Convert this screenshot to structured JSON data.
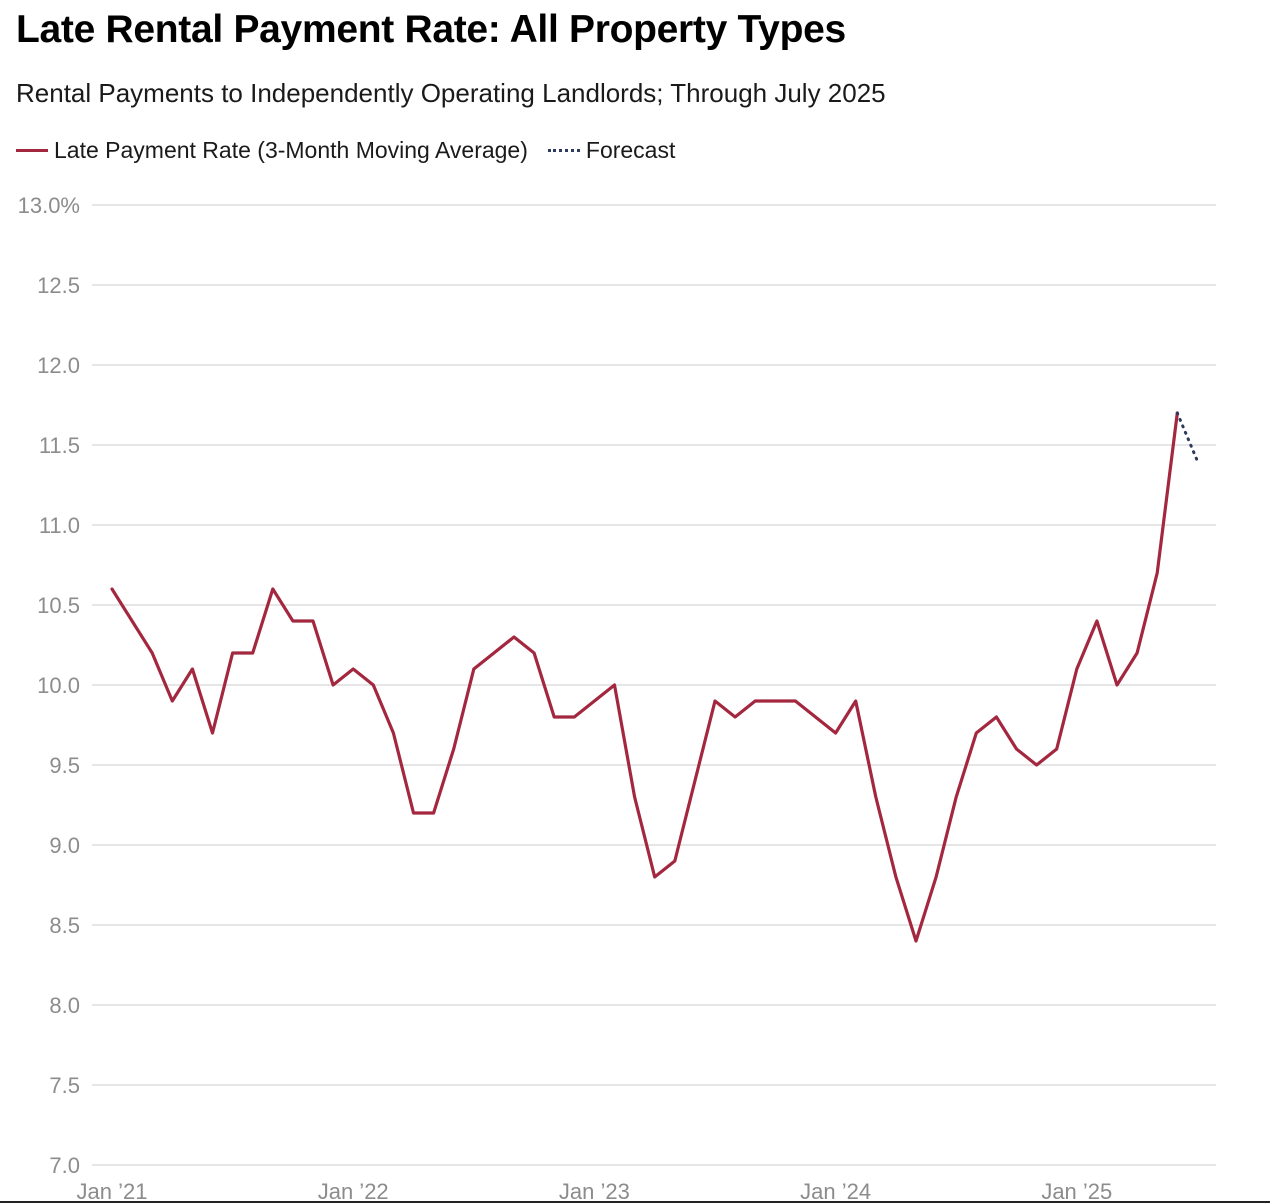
{
  "title": "Late Rental Payment Rate: All Property Types",
  "subtitle": "Rental Payments to Independently Operating Landlords; Through July 2025",
  "chart_data": {
    "type": "line",
    "title": "Late Rental Payment Rate: All Property Types",
    "subtitle": "Rental Payments to Independently Operating Landlords; Through July 2025",
    "ylim": [
      7.0,
      13.0
    ],
    "grid": true,
    "legend_position": "top-left",
    "y_ticks": [
      {
        "value": 13.0,
        "label": "13.0%"
      },
      {
        "value": 12.5,
        "label": "12.5"
      },
      {
        "value": 12.0,
        "label": "12.0"
      },
      {
        "value": 11.5,
        "label": "11.5"
      },
      {
        "value": 11.0,
        "label": "11.0"
      },
      {
        "value": 10.5,
        "label": "10.5"
      },
      {
        "value": 10.0,
        "label": "10.0"
      },
      {
        "value": 9.5,
        "label": "9.5"
      },
      {
        "value": 9.0,
        "label": "9.0"
      },
      {
        "value": 8.5,
        "label": "8.5"
      },
      {
        "value": 8.0,
        "label": "8.0"
      },
      {
        "value": 7.5,
        "label": "7.5"
      },
      {
        "value": 7.0,
        "label": "7.0"
      }
    ],
    "x_ticks": [
      {
        "date": "2021-01",
        "label": "Jan ’21"
      },
      {
        "date": "2022-01",
        "label": "Jan ’22"
      },
      {
        "date": "2023-01",
        "label": "Jan ’23"
      },
      {
        "date": "2024-01",
        "label": "Jan ’24"
      },
      {
        "date": "2025-01",
        "label": "Jan ’25"
      }
    ],
    "series": [
      {
        "name": "Late Payment Rate (3-Month Moving Average)",
        "color": "#a3283f",
        "style": "solid",
        "x": [
          "2021-01",
          "2021-02",
          "2021-03",
          "2021-04",
          "2021-05",
          "2021-06",
          "2021-07",
          "2021-08",
          "2021-09",
          "2021-10",
          "2021-11",
          "2021-12",
          "2022-01",
          "2022-02",
          "2022-03",
          "2022-04",
          "2022-05",
          "2022-06",
          "2022-07",
          "2022-08",
          "2022-09",
          "2022-10",
          "2022-11",
          "2022-12",
          "2023-01",
          "2023-02",
          "2023-03",
          "2023-04",
          "2023-05",
          "2023-06",
          "2023-07",
          "2023-08",
          "2023-09",
          "2023-10",
          "2023-11",
          "2023-12",
          "2024-01",
          "2024-02",
          "2024-03",
          "2024-04",
          "2024-05",
          "2024-06",
          "2024-07",
          "2024-08",
          "2024-09",
          "2024-10",
          "2024-11",
          "2024-12",
          "2025-01",
          "2025-02",
          "2025-03",
          "2025-04",
          "2025-05",
          "2025-06"
        ],
        "y": [
          10.6,
          10.4,
          10.2,
          9.9,
          10.1,
          9.7,
          10.2,
          10.2,
          10.6,
          10.4,
          10.4,
          10.0,
          10.1,
          10.0,
          9.7,
          9.2,
          9.2,
          9.6,
          10.1,
          10.2,
          10.3,
          10.2,
          9.8,
          9.8,
          9.9,
          10.0,
          9.3,
          8.8,
          8.9,
          9.4,
          9.9,
          9.8,
          9.9,
          9.9,
          9.9,
          9.8,
          9.7,
          9.9,
          9.3,
          8.8,
          8.4,
          8.8,
          9.3,
          9.7,
          9.8,
          9.6,
          9.5,
          9.6,
          10.1,
          10.4,
          10.0,
          10.2,
          10.7,
          11.7
        ]
      },
      {
        "name": "Forecast",
        "color": "#2e3a5c",
        "style": "dotted",
        "x": [
          "2025-06",
          "2025-07"
        ],
        "y": [
          11.7,
          11.4
        ]
      }
    ]
  }
}
